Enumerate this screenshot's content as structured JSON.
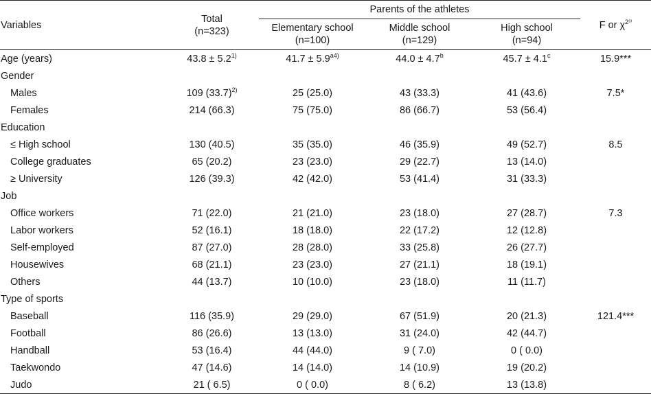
{
  "header": {
    "variables": "Variables",
    "total_label": "Total",
    "total_n": "(n=323)",
    "group_title": "Parents of the athletes",
    "groups": [
      {
        "label": "Elementary school",
        "n": "(n=100)"
      },
      {
        "label": "Middle school",
        "n": "(n=129)"
      },
      {
        "label": "High school",
        "n": "(n=94)"
      }
    ],
    "stat_label": "F or χ",
    "stat_sup": "2³⁾"
  },
  "rows": [
    {
      "type": "row",
      "label": "Age (years)",
      "total": "43.8 ± 5.2",
      "total_sup": "1)",
      "g1": "41.7 ± 5.9",
      "g1_sup": "a4)",
      "g2": "44.0 ± 4.7",
      "g2_sup": "b",
      "g3": "45.7 ± 4.1",
      "g3_sup": "c",
      "stat": "15.9***"
    },
    {
      "type": "section",
      "label": "Gender"
    },
    {
      "type": "sub",
      "label": "Males",
      "total": "109 (33.7)",
      "total_sup": "2)",
      "g1": "25 (25.0)",
      "g2": "43 (33.3)",
      "g3": "41 (43.6)",
      "stat": "7.5*"
    },
    {
      "type": "sub",
      "label": "Females",
      "total": "214 (66.3)",
      "g1": "75 (75.0)",
      "g2": "86 (66.7)",
      "g3": "53 (56.4)",
      "stat": ""
    },
    {
      "type": "section",
      "label": "Education"
    },
    {
      "type": "sub",
      "label": "≤ High school",
      "total": "130 (40.5)",
      "g1": "35 (35.0)",
      "g2": "46 (35.9)",
      "g3": "49 (52.7)",
      "stat": "8.5"
    },
    {
      "type": "sub",
      "label": "College graduates",
      "total": "65 (20.2)",
      "g1": "23 (23.0)",
      "g2": "29 (22.7)",
      "g3": "13 (14.0)",
      "stat": ""
    },
    {
      "type": "sub",
      "label": "≥ University",
      "total": "126 (39.3)",
      "g1": "42 (42.0)",
      "g2": "53 (41.4)",
      "g3": "31 (33.3)",
      "stat": ""
    },
    {
      "type": "section",
      "label": "Job"
    },
    {
      "type": "sub",
      "label": "Office workers",
      "total": "71 (22.0)",
      "g1": "21 (21.0)",
      "g2": "23 (18.0)",
      "g3": "27 (28.7)",
      "stat": "7.3"
    },
    {
      "type": "sub",
      "label": "Labor workers",
      "total": "52 (16.1)",
      "g1": "18 (18.0)",
      "g2": "22 (17.2)",
      "g3": "12 (12.8)",
      "stat": ""
    },
    {
      "type": "sub",
      "label": "Self-employed",
      "total": "87 (27.0)",
      "g1": "28 (28.0)",
      "g2": "33 (25.8)",
      "g3": "26 (27.7)",
      "stat": ""
    },
    {
      "type": "sub",
      "label": "Housewives",
      "total": "68 (21.1)",
      "g1": "23 (23.0)",
      "g2": "27 (21.1)",
      "g3": "18 (19.1)",
      "stat": ""
    },
    {
      "type": "sub",
      "label": "Others",
      "total": "44 (13.7)",
      "g1": "10 (10.0)",
      "g2": "23 (18.0)",
      "g3": "11 (11.7)",
      "stat": ""
    },
    {
      "type": "section",
      "label": "Type of sports"
    },
    {
      "type": "sub",
      "label": "Baseball",
      "total": "116 (35.9)",
      "g1": "29 (29.0)",
      "g2": "67 (51.9)",
      "g3": "20 (21.3)",
      "stat": "121.4***"
    },
    {
      "type": "sub",
      "label": "Football",
      "total": "86 (26.6)",
      "g1": "13 (13.0)",
      "g2": "31 (24.0)",
      "g3": "42 (44.7)",
      "stat": ""
    },
    {
      "type": "sub",
      "label": "Handball",
      "total": "53 (16.4)",
      "g1": "44 (44.0)",
      "g2": "9 ( 7.0)",
      "g3": "0 ( 0.0)",
      "stat": ""
    },
    {
      "type": "sub",
      "label": "Taekwondo",
      "total": "47 (14.6)",
      "g1": "14 (14.0)",
      "g2": "14 (10.9)",
      "g3": "19 (20.2)",
      "stat": ""
    },
    {
      "type": "sub",
      "label": "Judo",
      "total": "21 ( 6.5)",
      "g1": "0 ( 0.0)",
      "g2": "8 ( 6.2)",
      "g3": "13 (13.8)",
      "stat": ""
    }
  ]
}
